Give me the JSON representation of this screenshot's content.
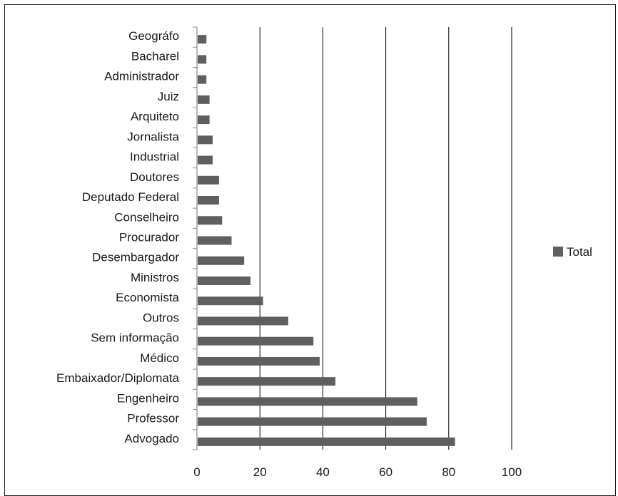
{
  "chart_data": {
    "type": "bar",
    "orientation": "horizontal",
    "categories": [
      "Advogado",
      "Professor",
      "Engenheiro",
      "Embaixador/Diplomata",
      "Médico",
      "Sem informação",
      "Outros",
      "Economista",
      "Ministros",
      "Desembargador",
      "Procurador",
      "Conselheiro",
      "Deputado Federal",
      "Doutores",
      "Industrial",
      "Jornalista",
      "Arquiteto",
      "Juiz",
      "Administrador",
      "Bacharel",
      "Geográfo"
    ],
    "series": [
      {
        "name": "Total",
        "values": [
          82,
          73,
          70,
          44,
          39,
          37,
          29,
          21,
          17,
          15,
          11,
          8,
          7,
          7,
          5,
          5,
          4,
          4,
          3,
          3,
          3
        ]
      }
    ],
    "xlim": [
      0,
      100
    ],
    "x_ticks": [
      "0",
      "20",
      "40",
      "60",
      "80",
      "100"
    ],
    "grid": "vertical",
    "legend": "right",
    "colors": {
      "bar": "#5f5f5f",
      "grid": "#000000",
      "axis": "#8a8a8a"
    }
  }
}
